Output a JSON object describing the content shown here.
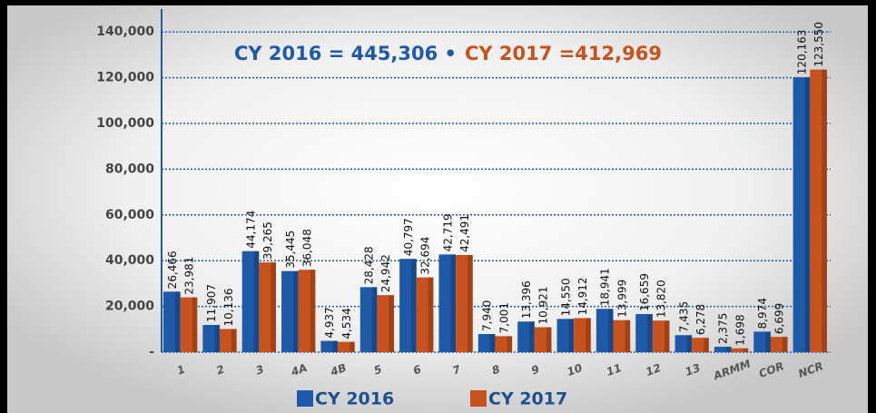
{
  "chart_data": {
    "type": "bar",
    "title": [
      "CY 2016 = 445,306 •",
      "CY 2017 =412,969"
    ],
    "categories": [
      "1",
      "2",
      "3",
      "4A",
      "4B",
      "5",
      "6",
      "7",
      "8",
      "9",
      "10",
      "11",
      "12",
      "13",
      "ARMM",
      "COR",
      "NCR"
    ],
    "series": [
      {
        "name": "CY 2016",
        "color": "#1f5aa8",
        "values": [
          26466,
          11907,
          44174,
          35445,
          4937,
          28428,
          40797,
          42719,
          7940,
          13396,
          14550,
          18941,
          16659,
          7435,
          2375,
          8974,
          120163
        ],
        "value_labels": [
          "26,466",
          "11,907",
          "44,174",
          "35,445",
          "4,937",
          "28,428",
          "40,797",
          "42,719",
          "7,940",
          "13,396",
          "14,550",
          "18,941",
          "16,659",
          "7,435",
          "2,375",
          "8,974",
          "120,163"
        ]
      },
      {
        "name": "CY 2017",
        "color": "#c8521e",
        "values": [
          23981,
          10136,
          39265,
          36048,
          4534,
          24942,
          32694,
          42491,
          7001,
          10921,
          14912,
          13999,
          13820,
          6278,
          1698,
          6699,
          123550
        ],
        "value_labels": [
          "23,981",
          "10,136",
          "39,265",
          "36,048",
          "4,534",
          "24,942",
          "32,694",
          "42,491",
          "7,001",
          "10,921",
          "14,912",
          "13,999",
          "13,820",
          "6,278",
          "1,698",
          "6,699",
          "123,550"
        ]
      }
    ],
    "ylim": [
      0,
      150000
    ],
    "yticks": [
      {
        "value": 0,
        "label": "-"
      },
      {
        "value": 20000,
        "label": "20,000"
      },
      {
        "value": 40000,
        "label": "40,000"
      },
      {
        "value": 60000,
        "label": "60,000"
      },
      {
        "value": 80000,
        "label": "80,000"
      },
      {
        "value": 100000,
        "label": "100,000"
      },
      {
        "value": 120000,
        "label": "120,000"
      },
      {
        "value": 140000,
        "label": "140,000"
      }
    ],
    "grid": true
  }
}
